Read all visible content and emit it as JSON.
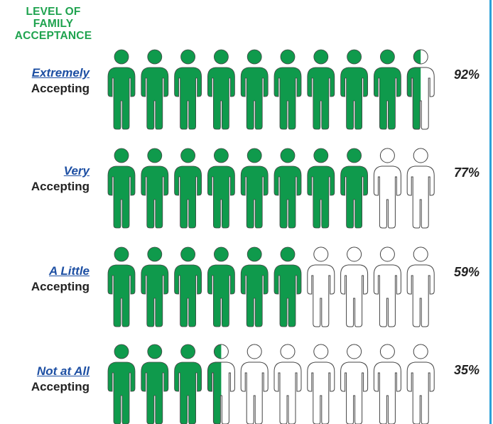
{
  "heading": [
    "LEVEL OF",
    "FAMILY",
    "ACCEPTANCE"
  ],
  "colors": {
    "fill": "#0f9a4c",
    "outline": "#444444",
    "empty": "#ffffff",
    "heading": "#1fa34f",
    "level_text": "#1d4fa3",
    "rule": "#2aa0d8"
  },
  "icon": "person-icon",
  "people_per_row": 10,
  "rows": [
    {
      "level": "Extremely",
      "suffix": "Accepting",
      "percent_label": "92%"
    },
    {
      "level": "Very",
      "suffix": "Accepting",
      "percent_label": "77%"
    },
    {
      "level": "A Little",
      "suffix": "Accepting",
      "percent_label": "59%"
    },
    {
      "level": "Not at All",
      "suffix": "Accepting",
      "percent_label": "35%"
    }
  ],
  "chart_data": {
    "type": "pictograph",
    "title": "LEVEL OF FAMILY ACCEPTANCE",
    "categories": [
      "Extremely Accepting",
      "Very Accepting",
      "A Little Accepting",
      "Not at All Accepting"
    ],
    "values": [
      92,
      77,
      59,
      35
    ],
    "unit": "%",
    "icons_per_row": 10,
    "filled_icons": [
      9.5,
      8,
      6,
      3.5
    ]
  }
}
